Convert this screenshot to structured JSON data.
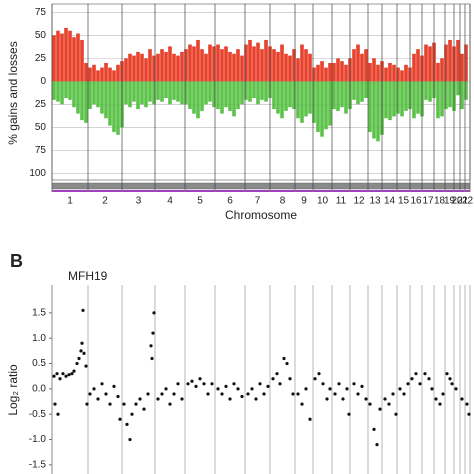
{
  "chart_data": [
    {
      "type": "bar",
      "y_label": "% gains and losses",
      "x_label": "Chromosome",
      "chromosomes": [
        "1",
        "2",
        "3",
        "4",
        "5",
        "6",
        "7",
        "8",
        "9",
        "10",
        "11",
        "12",
        "13",
        "14",
        "15",
        "16",
        "17",
        "18",
        "19",
        "20",
        "21",
        "22"
      ],
      "boundaries": [
        0,
        36,
        70,
        103,
        133,
        163,
        193,
        218,
        243,
        261,
        280,
        298,
        316,
        330,
        345,
        358,
        370,
        382,
        393,
        402,
        408,
        413,
        418
      ],
      "xlim": [
        0,
        418
      ],
      "ylim": [
        -107,
        84
      ],
      "yticks": [
        75,
        50,
        25,
        0,
        {
          "value": -25,
          "label": "25"
        },
        {
          "value": -50,
          "label": "50"
        },
        {
          "value": -75,
          "label": "75"
        },
        {
          "value": -100,
          "label": "100"
        }
      ],
      "gain_color": "#e8412c",
      "loss_color": "#5cc24a",
      "x": [
        2,
        6,
        10,
        14,
        18,
        22,
        26,
        30,
        34,
        38,
        42,
        46,
        50,
        54,
        58,
        62,
        66,
        70,
        74,
        78,
        82,
        86,
        90,
        94,
        98,
        102,
        106,
        110,
        114,
        118,
        122,
        126,
        130,
        134,
        138,
        142,
        146,
        150,
        154,
        158,
        162,
        166,
        170,
        174,
        178,
        182,
        186,
        190,
        194,
        198,
        202,
        206,
        210,
        214,
        218,
        222,
        226,
        230,
        234,
        238,
        242,
        246,
        250,
        254,
        258,
        262,
        266,
        270,
        274,
        278,
        282,
        286,
        290,
        294,
        298,
        302,
        306,
        310,
        314,
        318,
        322,
        326,
        330,
        334,
        338,
        342,
        346,
        350,
        354,
        358,
        362,
        366,
        370,
        374,
        378,
        382,
        386,
        390,
        394,
        398,
        402,
        406,
        410,
        414
      ],
      "gains": [
        50,
        55,
        52,
        58,
        55,
        48,
        52,
        45,
        20,
        15,
        18,
        12,
        15,
        20,
        15,
        12,
        18,
        22,
        25,
        30,
        28,
        32,
        30,
        25,
        35,
        28,
        30,
        35,
        32,
        38,
        30,
        28,
        32,
        35,
        40,
        38,
        45,
        35,
        30,
        40,
        38,
        40,
        35,
        38,
        32,
        30,
        35,
        28,
        40,
        45,
        38,
        42,
        35,
        45,
        38,
        35,
        32,
        40,
        30,
        28,
        35,
        25,
        40,
        35,
        30,
        15,
        18,
        22,
        15,
        20,
        20,
        25,
        22,
        18,
        25,
        35,
        40,
        30,
        35,
        20,
        25,
        18,
        22,
        15,
        20,
        18,
        15,
        12,
        18,
        15,
        30,
        35,
        28,
        40,
        38,
        42,
        20,
        25,
        40,
        45,
        38,
        45,
        30,
        40
      ],
      "losses": [
        20,
        22,
        25,
        18,
        20,
        28,
        35,
        42,
        45,
        30,
        25,
        28,
        35,
        40,
        48,
        55,
        58,
        50,
        25,
        28,
        22,
        30,
        25,
        28,
        22,
        25,
        20,
        22,
        18,
        25,
        20,
        22,
        25,
        25,
        30,
        35,
        40,
        32,
        25,
        22,
        28,
        30,
        35,
        28,
        32,
        38,
        30,
        25,
        20,
        22,
        18,
        25,
        20,
        22,
        18,
        30,
        35,
        40,
        32,
        28,
        30,
        40,
        45,
        38,
        35,
        45,
        55,
        60,
        52,
        48,
        30,
        32,
        28,
        35,
        30,
        20,
        25,
        22,
        18,
        55,
        62,
        65,
        58,
        40,
        42,
        38,
        35,
        38,
        32,
        30,
        40,
        35,
        38,
        20,
        22,
        18,
        40,
        38,
        30,
        28,
        32,
        15,
        30,
        20
      ]
    },
    {
      "type": "scatter",
      "panel_label": "B",
      "title": "MFH19",
      "y_label": "Log₂ ratio",
      "boundaries": [
        0,
        36,
        70,
        103,
        133,
        163,
        193,
        218,
        243,
        261,
        280,
        298,
        316,
        330,
        345,
        358,
        370,
        382,
        393,
        402,
        408,
        413,
        418
      ],
      "xlim": [
        0,
        418
      ],
      "ylim": [
        -1.68,
        2.05
      ],
      "yticks": [
        1.5,
        {
          "value": 1,
          "label": "1.0"
        },
        0.5,
        {
          "value": 0,
          "label": "0.0"
        },
        -0.5,
        {
          "value": -1,
          "label": "-1.0"
        },
        -1.5
      ],
      "color": "#111111",
      "x": [
        2,
        5,
        8,
        11,
        14,
        17,
        20,
        3,
        6,
        22,
        25,
        27,
        29,
        30,
        31,
        32,
        34,
        35,
        38,
        42,
        46,
        50,
        54,
        58,
        62,
        66,
        68,
        72,
        75,
        78,
        80,
        84,
        88,
        92,
        96,
        99,
        101,
        102,
        100,
        106,
        110,
        114,
        118,
        122,
        126,
        130,
        136,
        140,
        144,
        148,
        152,
        156,
        160,
        166,
        170,
        174,
        178,
        182,
        186,
        190,
        196,
        200,
        204,
        208,
        212,
        216,
        221,
        225,
        228,
        232,
        235,
        238,
        241,
        246,
        250,
        254,
        258,
        263,
        267,
        271,
        275,
        278,
        283,
        287,
        291,
        295,
        297,
        302,
        306,
        310,
        314,
        318,
        322,
        325,
        328,
        333,
        337,
        341,
        344,
        348,
        352,
        356,
        360,
        364,
        368,
        373,
        377,
        380,
        384,
        388,
        391,
        395,
        398,
        400,
        404,
        410,
        415,
        417
      ],
      "y": [
        0.25,
        0.3,
        0.2,
        0.3,
        0.25,
        0.28,
        0.3,
        -0.3,
        -0.5,
        0.35,
        0.5,
        0.6,
        0.75,
        0.9,
        1.55,
        0.7,
        0.45,
        -0.3,
        -0.1,
        0,
        -0.2,
        0.1,
        -0.1,
        -0.3,
        0.05,
        -0.15,
        -0.6,
        -0.3,
        -0.7,
        -1,
        -0.5,
        -0.3,
        -0.2,
        -0.4,
        -0.1,
        0.85,
        1.1,
        1.5,
        0.6,
        -0.2,
        -0.1,
        0,
        -0.3,
        -0.1,
        0.1,
        -0.2,
        0.1,
        0.15,
        0.05,
        0.2,
        0.1,
        -0.1,
        0.1,
        0,
        -0.1,
        0.05,
        -0.2,
        0.1,
        0,
        -0.15,
        -0.1,
        0,
        -0.2,
        0.1,
        -0.1,
        0.05,
        0.2,
        0.3,
        0.1,
        0.6,
        0.5,
        0.2,
        -0.1,
        -0.1,
        -0.3,
        0,
        -0.6,
        0.2,
        0.3,
        0.1,
        -0.2,
        0,
        -0.1,
        0.1,
        -0.2,
        0,
        -0.5,
        0.1,
        -0.1,
        0.05,
        -0.2,
        -0.3,
        -0.8,
        -1.1,
        -0.4,
        -0.2,
        -0.3,
        -0.1,
        -0.5,
        0,
        -0.1,
        0.1,
        0.2,
        0.3,
        0.1,
        0.3,
        0.2,
        0,
        -0.2,
        -0.3,
        -0.1,
        0.3,
        0.2,
        0.1,
        0,
        -0.2,
        -0.3,
        -0.5
      ]
    }
  ]
}
